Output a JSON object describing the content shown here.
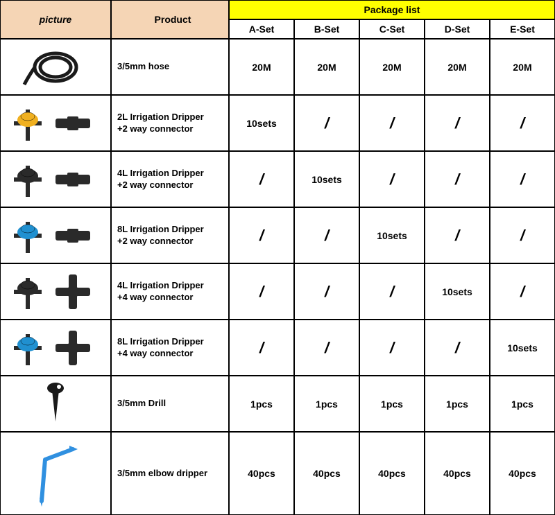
{
  "headers": {
    "picture": "picture",
    "product": "Product",
    "package_list": "Package list",
    "sets": [
      "A-Set",
      "B-Set",
      "C-Set",
      "D-Set",
      "E-Set"
    ]
  },
  "colors": {
    "beige": "#f5d5b5",
    "yellow": "#ffff00",
    "border": "#000000",
    "hose": "#1a1a1a",
    "dripper_yellow": "#f0b020",
    "dripper_black": "#2a2a2a",
    "dripper_blue": "#2090d0",
    "drill_black": "#1a1a1a",
    "elbow_blue": "#3090e0"
  },
  "rows": [
    {
      "id": "hose",
      "product": "3/5mm hose",
      "values": [
        "20M",
        "20M",
        "20M",
        "20M",
        "20M"
      ],
      "icon": "hose"
    },
    {
      "id": "2l-2way",
      "product": "2L Irrigation Dripper\n+2 way connector",
      "values": [
        "10sets",
        "/",
        "/",
        "/",
        "/"
      ],
      "icon": "dripper-yellow-2way"
    },
    {
      "id": "4l-2way",
      "product": "4L Irrigation Dripper\n+2 way connector",
      "values": [
        "/",
        "10sets",
        "/",
        "/",
        "/"
      ],
      "icon": "dripper-black-2way"
    },
    {
      "id": "8l-2way",
      "product": "8L Irrigation Dripper\n+2 way connector",
      "values": [
        "/",
        "/",
        "10sets",
        "/",
        "/"
      ],
      "icon": "dripper-blue-2way"
    },
    {
      "id": "4l-4way",
      "product": "4L Irrigation Dripper\n+4 way connector",
      "values": [
        "/",
        "/",
        "/",
        "10sets",
        "/"
      ],
      "icon": "dripper-black-4way"
    },
    {
      "id": "8l-4way",
      "product": "8L Irrigation Dripper\n+4 way connector",
      "values": [
        "/",
        "/",
        "/",
        "/",
        "10sets"
      ],
      "icon": "dripper-blue-4way"
    },
    {
      "id": "drill",
      "product": "3/5mm Drill",
      "values": [
        "1pcs",
        "1pcs",
        "1pcs",
        "1pcs",
        "1pcs"
      ],
      "icon": "drill"
    },
    {
      "id": "elbow",
      "product": "3/5mm elbow dripper",
      "values": [
        "40pcs",
        "40pcs",
        "40pcs",
        "40pcs",
        "40pcs"
      ],
      "icon": "elbow",
      "tall": true
    }
  ]
}
